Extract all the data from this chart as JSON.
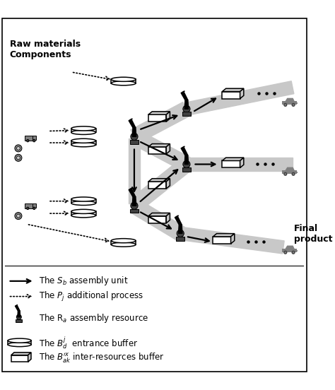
{
  "bg_color": "#ffffff",
  "gray_color": "#808080",
  "light_gray": "#c8c8c8",
  "dark_gray": "#404040",
  "fig_width": 4.74,
  "fig_height": 5.52,
  "dpi": 100,
  "raw_materials_label": "Raw materials\nComponents",
  "final_product_label": "Final\nproduct"
}
